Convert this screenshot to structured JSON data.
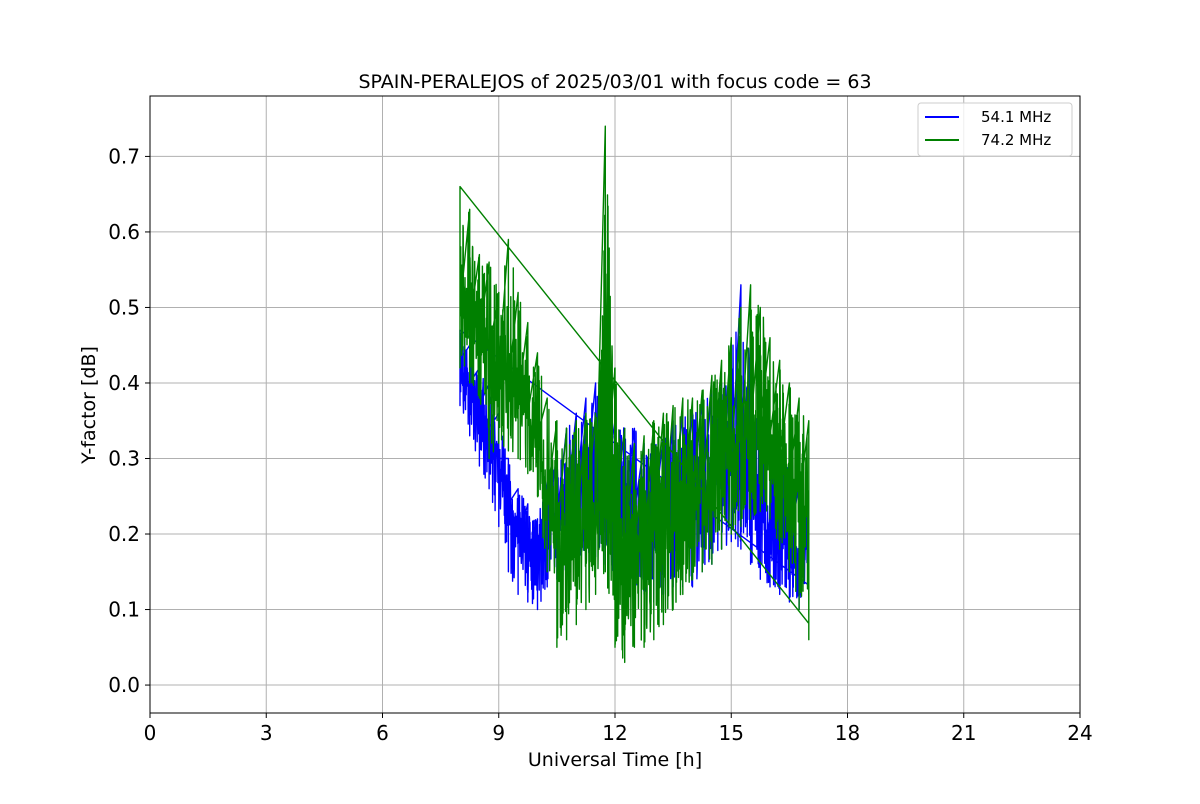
{
  "chart_data": {
    "type": "line",
    "title": "SPAIN-PERALEJOS of 2025/03/01 with focus code = 63",
    "xlabel": "Universal Time [h]",
    "ylabel": "Y-factor [dB]",
    "xlim": [
      0,
      24
    ],
    "ylim": [
      -0.037,
      0.78
    ],
    "xticks": [
      0,
      3,
      6,
      9,
      12,
      15,
      18,
      21,
      24
    ],
    "yticks": [
      0.0,
      0.1,
      0.2,
      0.3,
      0.4,
      0.5,
      0.6,
      0.7
    ],
    "xtick_labels": [
      "0",
      "3",
      "6",
      "9",
      "12",
      "15",
      "18",
      "21",
      "24"
    ],
    "ytick_labels": [
      "0.0",
      "0.1",
      "0.2",
      "0.3",
      "0.4",
      "0.5",
      "0.6",
      "0.7"
    ],
    "grid": true,
    "legend_position": "upper right",
    "series": [
      {
        "name": "54.1 MHz",
        "color": "#0000ff",
        "x": [
          8.0,
          8.25,
          8.5,
          8.75,
          9.0,
          9.25,
          9.5,
          9.75,
          10.0,
          10.25,
          10.5,
          10.75,
          11.0,
          11.25,
          11.5,
          11.75,
          12.0,
          12.25,
          12.5,
          12.75,
          13.0,
          13.25,
          13.5,
          13.75,
          14.0,
          14.25,
          14.5,
          14.75,
          15.0,
          15.25,
          15.5,
          15.75,
          16.0,
          16.25,
          16.5,
          16.75,
          17.0
        ],
        "y": [
          0.43,
          0.4,
          0.37,
          0.34,
          0.3,
          0.24,
          0.19,
          0.17,
          0.16,
          0.2,
          0.22,
          0.24,
          0.26,
          0.27,
          0.27,
          0.26,
          0.24,
          0.24,
          0.23,
          0.22,
          0.22,
          0.23,
          0.24,
          0.24,
          0.24,
          0.25,
          0.26,
          0.27,
          0.29,
          0.3,
          0.26,
          0.22,
          0.21,
          0.2,
          0.18,
          0.17,
          0.17
        ],
        "low": [
          0.37,
          0.33,
          0.29,
          0.26,
          0.21,
          0.15,
          0.12,
          0.11,
          0.1,
          0.13,
          0.14,
          0.15,
          0.16,
          0.17,
          0.17,
          0.16,
          0.14,
          0.13,
          0.13,
          0.12,
          0.11,
          0.12,
          0.13,
          0.13,
          0.13,
          0.15,
          0.16,
          0.18,
          0.19,
          0.18,
          0.16,
          0.14,
          0.13,
          0.12,
          0.11,
          0.1,
          0.12
        ],
        "high": [
          0.47,
          0.45,
          0.42,
          0.4,
          0.36,
          0.3,
          0.26,
          0.24,
          0.22,
          0.27,
          0.31,
          0.34,
          0.36,
          0.38,
          0.4,
          0.38,
          0.35,
          0.34,
          0.34,
          0.32,
          0.32,
          0.33,
          0.35,
          0.36,
          0.36,
          0.38,
          0.39,
          0.4,
          0.44,
          0.53,
          0.44,
          0.36,
          0.33,
          0.31,
          0.29,
          0.27,
          0.25
        ]
      },
      {
        "name": "74.2 MHz",
        "color": "#008000",
        "x": [
          8.0,
          8.25,
          8.5,
          8.75,
          9.0,
          9.25,
          9.5,
          9.75,
          10.0,
          10.25,
          10.5,
          10.75,
          11.0,
          11.25,
          11.5,
          11.75,
          12.0,
          12.25,
          12.5,
          12.75,
          13.0,
          13.25,
          13.5,
          13.75,
          14.0,
          14.25,
          14.5,
          14.75,
          15.0,
          15.25,
          15.5,
          15.75,
          16.0,
          16.25,
          16.5,
          16.75,
          17.0
        ],
        "y": [
          0.5,
          0.48,
          0.46,
          0.44,
          0.42,
          0.4,
          0.38,
          0.36,
          0.33,
          0.25,
          0.2,
          0.19,
          0.2,
          0.22,
          0.22,
          0.27,
          0.23,
          0.18,
          0.17,
          0.18,
          0.2,
          0.2,
          0.22,
          0.23,
          0.24,
          0.25,
          0.26,
          0.28,
          0.3,
          0.32,
          0.34,
          0.35,
          0.33,
          0.3,
          0.27,
          0.24,
          0.22
        ],
        "low": [
          0.42,
          0.4,
          0.38,
          0.3,
          0.32,
          0.31,
          0.3,
          0.28,
          0.25,
          0.15,
          0.05,
          0.06,
          0.08,
          0.1,
          0.12,
          0.15,
          0.05,
          0.03,
          0.05,
          0.05,
          0.06,
          0.08,
          0.1,
          0.12,
          0.14,
          0.15,
          0.16,
          0.18,
          0.2,
          0.21,
          0.22,
          0.23,
          0.22,
          0.18,
          0.15,
          0.1,
          0.06
        ],
        "high": [
          0.66,
          0.63,
          0.57,
          0.56,
          0.52,
          0.59,
          0.52,
          0.48,
          0.44,
          0.38,
          0.35,
          0.34,
          0.35,
          0.36,
          0.36,
          0.74,
          0.42,
          0.34,
          0.32,
          0.33,
          0.35,
          0.36,
          0.37,
          0.38,
          0.38,
          0.39,
          0.41,
          0.43,
          0.46,
          0.5,
          0.53,
          0.5,
          0.46,
          0.43,
          0.4,
          0.38,
          0.35
        ]
      }
    ]
  }
}
